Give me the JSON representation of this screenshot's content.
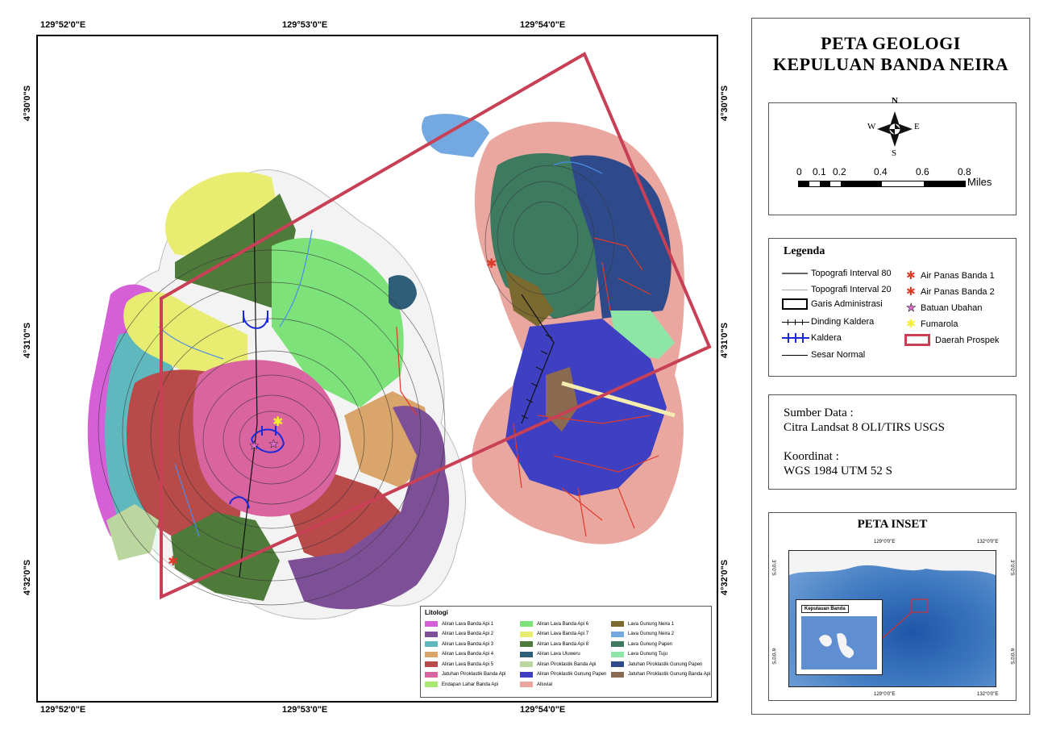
{
  "title": {
    "line1": "PETA GEOLOGI",
    "line2": "KEPULUAN BANDA NEIRA"
  },
  "coordinates": {
    "top": [
      "129°52'0\"E",
      "129°53'0\"E",
      "129°54'0\"E"
    ],
    "bottom": [
      "129°52'0\"E",
      "129°53'0\"E",
      "129°54'0\"E"
    ],
    "left": [
      "4°30'0\"S",
      "4°31'0\"S",
      "4°32'0\"S"
    ],
    "right": [
      "4°30'0\"S",
      "4°31'0\"S",
      "4°32'0\"S"
    ]
  },
  "north_arrow": {
    "n": "N",
    "s": "S",
    "e": "E",
    "w": "W"
  },
  "scale_bar": {
    "ticks": [
      "0",
      "0.1",
      "0.2",
      "0.4",
      "0.6",
      "0.8"
    ],
    "unit": "Miles"
  },
  "legend": {
    "title": "Legenda",
    "left_items": [
      "Topografi Interval 80",
      "Topografi Interval 20",
      "Garis Administrasi",
      "Dinding Kaldera",
      "Kaldera",
      "Sesar Normal"
    ],
    "right_items": [
      "Air Panas Banda 1",
      "Air Panas Banda 2",
      "Batuan Ubahan",
      "Fumarola",
      "Daerah Prospek"
    ]
  },
  "source": {
    "label1": "Sumber Data :",
    "value1": "Citra Landsat 8 OLI/TIRS USGS",
    "label2": "Koordinat :",
    "value2": "WGS 1984 UTM 52 S"
  },
  "inset": {
    "title": "PETA INSET",
    "top_ticks": [
      "129°0'0\"E",
      "132°0'0\"E"
    ],
    "bottom_ticks": [
      "129°0'0\"E",
      "132°0'0\"E"
    ],
    "left_ticks": [
      "3°0'0\"S",
      "6°0'0\"S"
    ],
    "right_ticks": [
      "3°0'0\"S",
      "6°0'0\"S"
    ],
    "box_label": "Kepulauan Banda"
  },
  "litologi": {
    "title": "Litologi",
    "col1": [
      {
        "label": "Aliran Lava Banda Api 1",
        "color": "#d45fd6"
      },
      {
        "label": "Aliran Lava Banda Api 2",
        "color": "#7d4f97"
      },
      {
        "label": "Aliran Lava Banda Api 3",
        "color": "#5fb8bd"
      },
      {
        "label": "Aliran Lava Banda Api 4",
        "color": "#d9a56a"
      },
      {
        "label": "Aliran Lava Banda Api 5",
        "color": "#b84a4a"
      },
      {
        "label": "Jatuhan Piroklastik Banda Api",
        "color": "#d964a0"
      },
      {
        "label": "Endapan Lahar Banda Api",
        "color": "#a8e870"
      }
    ],
    "col2": [
      {
        "label": "Aliran Lava Banda Api 6",
        "color": "#7ee27a"
      },
      {
        "label": "Aliran Lava Banda Api 7",
        "color": "#e8ec70"
      },
      {
        "label": "Aliran Lava Banda Api 8",
        "color": "#4e7a3a"
      },
      {
        "label": "Aliran Lava Uluweru",
        "color": "#2f5f78"
      },
      {
        "label": "Aliran Piroklastik Banda Api",
        "color": "#bcd6a0"
      },
      {
        "label": "Aliran Piroklastik Gunung Papen",
        "color": "#3f3fc2"
      },
      {
        "label": "Alluvial",
        "color": "#e9a7a0"
      }
    ],
    "col3": [
      {
        "label": "Lava Gunung Neira 1",
        "color": "#7a6a30"
      },
      {
        "label": "Lava Gunung Neira 2",
        "color": "#73a9e0"
      },
      {
        "label": "Lava Gunung Papen",
        "color": "#3d7a60"
      },
      {
        "label": "Lava Gunung Tuju",
        "color": "#8ee6a6"
      },
      {
        "label": "Jatuhan Piroklastik Gunung Papen",
        "color": "#2e4a8a"
      },
      {
        "label": "Jatuhan Piroklastik Gunung Banda Api",
        "color": "#8a6a50"
      }
    ]
  },
  "colors": {
    "prospect": "#c84055",
    "fault": "#111111",
    "caldera": "#1a2ad8",
    "hotspring": "#e03a2a",
    "fumarole": "#f4ee30",
    "altered": "#e070d0",
    "road": "#e03a2a",
    "river": "#4a8ee6",
    "sea_inset": "#3f79c0"
  }
}
